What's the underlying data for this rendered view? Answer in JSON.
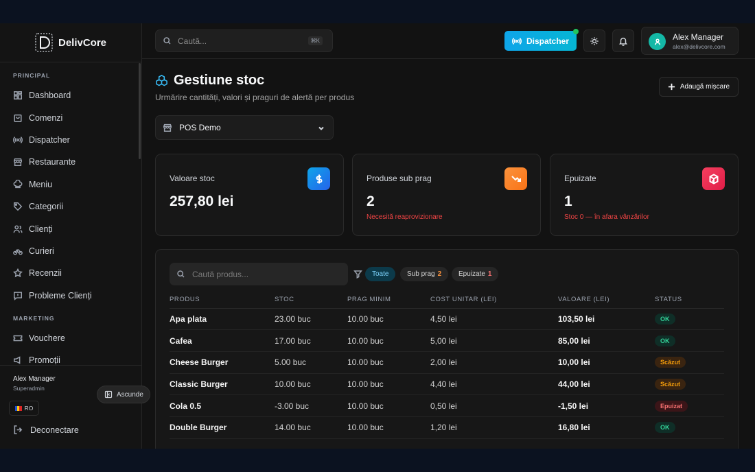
{
  "brand": {
    "name": "DelivCore"
  },
  "sidebar": {
    "section_principal": "PRINCIPAL",
    "section_marketing": "MARKETING",
    "items": [
      {
        "label": "Dashboard",
        "icon": "grid-icon"
      },
      {
        "label": "Comenzi",
        "icon": "bag-icon"
      },
      {
        "label": "Dispatcher",
        "icon": "radio-icon"
      },
      {
        "label": "Restaurante",
        "icon": "store-icon"
      },
      {
        "label": "Meniu",
        "icon": "chef-hat-icon"
      },
      {
        "label": "Categorii",
        "icon": "tag-icon"
      },
      {
        "label": "Clienți",
        "icon": "users-icon"
      },
      {
        "label": "Curieri",
        "icon": "bike-icon"
      },
      {
        "label": "Recenzii",
        "icon": "star-icon"
      },
      {
        "label": "Probleme Clienți",
        "icon": "message-icon"
      }
    ],
    "marketing_items": [
      {
        "label": "Vouchere",
        "icon": "ticket-icon"
      },
      {
        "label": "Promoții",
        "icon": "megaphone-icon"
      }
    ],
    "footer": {
      "user_name": "Alex Manager",
      "user_role": "Superadmin",
      "hide_label": "Ascunde",
      "lang": "RO",
      "logout": "Deconectare"
    }
  },
  "topbar": {
    "search_placeholder": "Caută...",
    "shortcut": "⌘K",
    "dispatcher_label": "Dispatcher",
    "user_name": "Alex Manager",
    "user_email": "alex@delivcore.com"
  },
  "page": {
    "title": "Gestiune stoc",
    "subtitle": "Urmărire cantități, valori și praguri de alertă per produs",
    "add_button": "Adaugă mișcare",
    "location_select": "POS Demo"
  },
  "cards": [
    {
      "label": "Valoare stoc",
      "value": "257,80 lei",
      "note": "",
      "color": "#0ea5e9",
      "icon": "dollar-icon"
    },
    {
      "label": "Produse sub prag",
      "value": "2",
      "note": "Necesită reaprovizionare",
      "color": "#f97316",
      "icon": "trend-down-icon"
    },
    {
      "label": "Epuizate",
      "value": "1",
      "note": "Stoc 0 — în afara vânzărilor",
      "color": "#ef1f3d",
      "icon": "box-x-icon"
    }
  ],
  "table": {
    "search_placeholder": "Caută produs...",
    "filters": [
      {
        "label": "Toate",
        "count": ""
      },
      {
        "label": "Sub prag",
        "count": "2"
      },
      {
        "label": "Epuizate",
        "count": "1"
      }
    ],
    "columns": [
      "PRODUS",
      "STOC",
      "PRAG MINIM",
      "COST UNITAR (LEI)",
      "VALOARE (LEI)",
      "STATUS"
    ],
    "rows": [
      {
        "product": "Apa plata",
        "stock": "23.00 buc",
        "min": "10.00 buc",
        "cost": "4,50 lei",
        "value": "103,50 lei",
        "status": "OK"
      },
      {
        "product": "Cafea",
        "stock": "17.00 buc",
        "min": "10.00 buc",
        "cost": "5,00 lei",
        "value": "85,00 lei",
        "status": "OK"
      },
      {
        "product": "Cheese Burger",
        "stock": "5.00 buc",
        "min": "10.00 buc",
        "cost": "2,00 lei",
        "value": "10,00 lei",
        "status": "Scăzut"
      },
      {
        "product": "Classic Burger",
        "stock": "10.00 buc",
        "min": "10.00 buc",
        "cost": "4,40 lei",
        "value": "44,00 lei",
        "status": "Scăzut"
      },
      {
        "product": "Cola 0.5",
        "stock": "-3.00 buc",
        "min": "10.00 buc",
        "cost": "0,50 lei",
        "value": "-1,50 lei",
        "status": "Epuizat"
      },
      {
        "product": "Double Burger",
        "stock": "14.00 buc",
        "min": "10.00 buc",
        "cost": "1,20 lei",
        "value": "16,80 lei",
        "status": "OK"
      }
    ]
  }
}
